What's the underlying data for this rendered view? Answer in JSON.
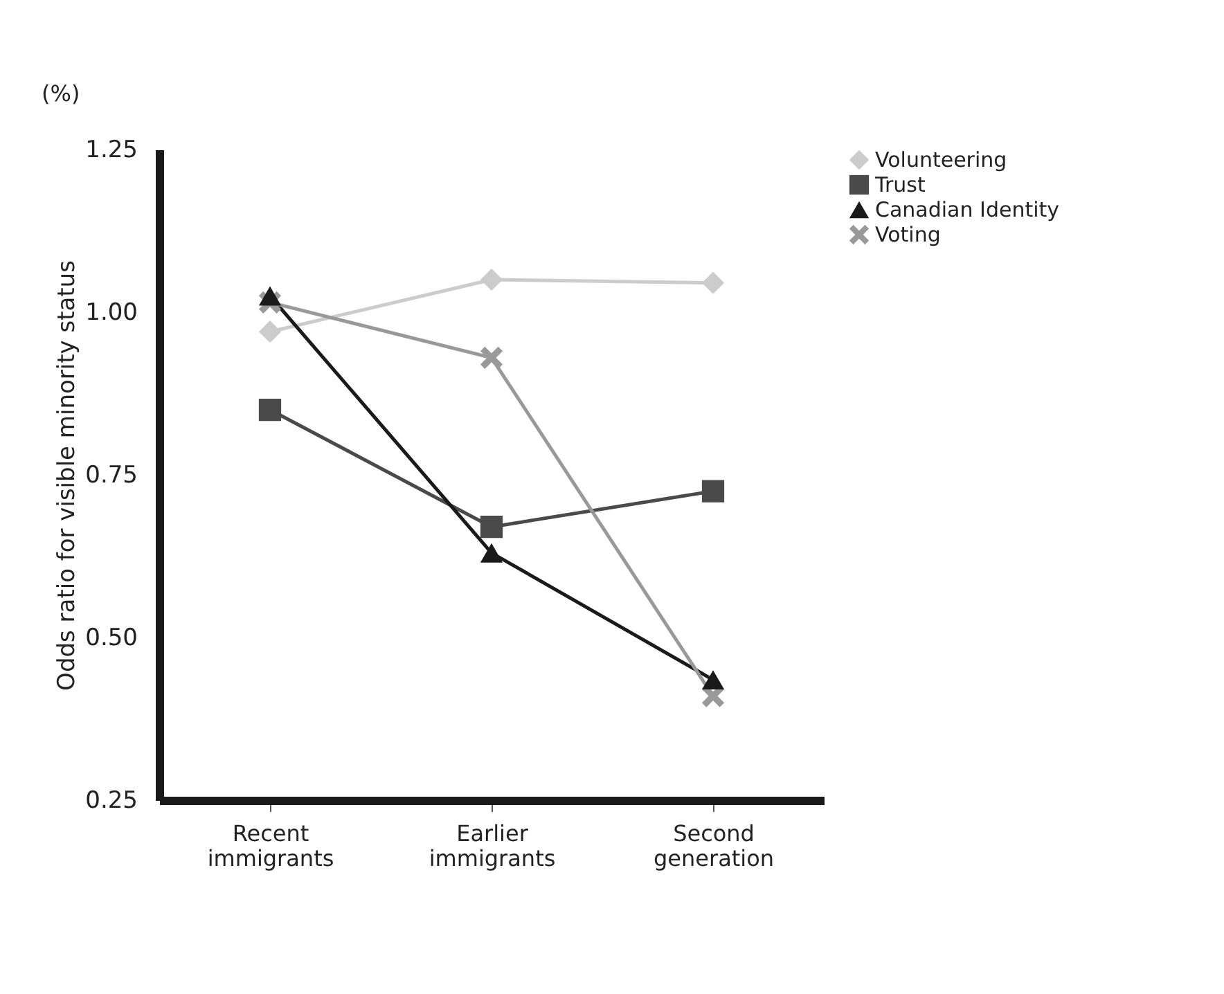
{
  "chart_data": {
    "type": "line",
    "categories": [
      "Recent immigrants",
      "Earlier immigrants",
      "Second generation"
    ],
    "ylabel": "Odds ratio for visible minority status",
    "annotations": [
      "(%)"
    ],
    "ylim": [
      0.25,
      1.25
    ],
    "yticks": [
      {
        "value": 0.25,
        "label": "0.25"
      },
      {
        "value": 0.5,
        "label": "0.50"
      },
      {
        "value": 0.75,
        "label": "0.75"
      },
      {
        "value": 1,
        "label": "1.00"
      },
      {
        "value": 1.25,
        "label": "1.25"
      }
    ],
    "grid": false,
    "legend": "top right",
    "series": [
      {
        "name": "Volunteering",
        "color": "#cccccc",
        "marker": "diamond",
        "values": [
          0.97,
          1.05,
          1.045
        ]
      },
      {
        "name": "Trust",
        "color": "#4a4a4a",
        "marker": "square",
        "values": [
          0.85,
          0.67,
          0.725
        ]
      },
      {
        "name": "Canadian Identity",
        "color": "#1a1a1a",
        "marker": "triangle",
        "values": [
          1.025,
          0.63,
          0.435
        ]
      },
      {
        "name": "Voting",
        "color": "#999999",
        "marker": "cross",
        "values": [
          1.015,
          0.93,
          0.41
        ]
      }
    ]
  }
}
